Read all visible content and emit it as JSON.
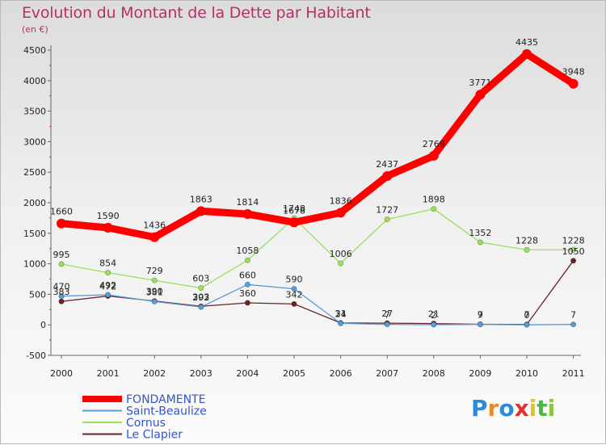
{
  "title": "Evolution du Montant de la Dette par Habitant",
  "subtitle": "(en €)",
  "logo": "Proxiti",
  "chart_data": {
    "type": "line",
    "title": "Evolution du Montant de la Dette par Habitant",
    "ylabel": "(en €)",
    "ylim": [
      -500,
      4500
    ],
    "yticks": [
      -500,
      0,
      500,
      1000,
      1500,
      2000,
      2500,
      3000,
      3500,
      4000,
      4500
    ],
    "x": [
      "2000",
      "2001",
      "2002",
      "2003",
      "2004",
      "2005",
      "2006",
      "2007",
      "2008",
      "2009",
      "2010",
      "2011"
    ],
    "grid": false,
    "legend_position": "bottom-left",
    "series": [
      {
        "name": "FONDAMENTE",
        "color": "#ff0000",
        "values": [
          1660,
          1590,
          1436,
          1863,
          1814,
          1678,
          1836,
          2437,
          2769,
          3771,
          4435,
          3948
        ]
      },
      {
        "name": "Saint-Beaulize",
        "color": "#5b9bd5",
        "values": [
          470,
          492,
          381,
          292,
          660,
          590,
          24,
          7,
          2,
          7,
          0,
          7
        ]
      },
      {
        "name": "Cornus",
        "color": "#99e05a",
        "values": [
          995,
          854,
          729,
          603,
          1058,
          1748,
          1006,
          1727,
          1898,
          1352,
          1228,
          1228
        ]
      },
      {
        "name": "Le Clapier",
        "color": "#6b2227",
        "values": [
          383,
          472,
          390,
          303,
          360,
          342,
          31,
          27,
          21,
          9,
          7,
          1050
        ]
      }
    ]
  }
}
